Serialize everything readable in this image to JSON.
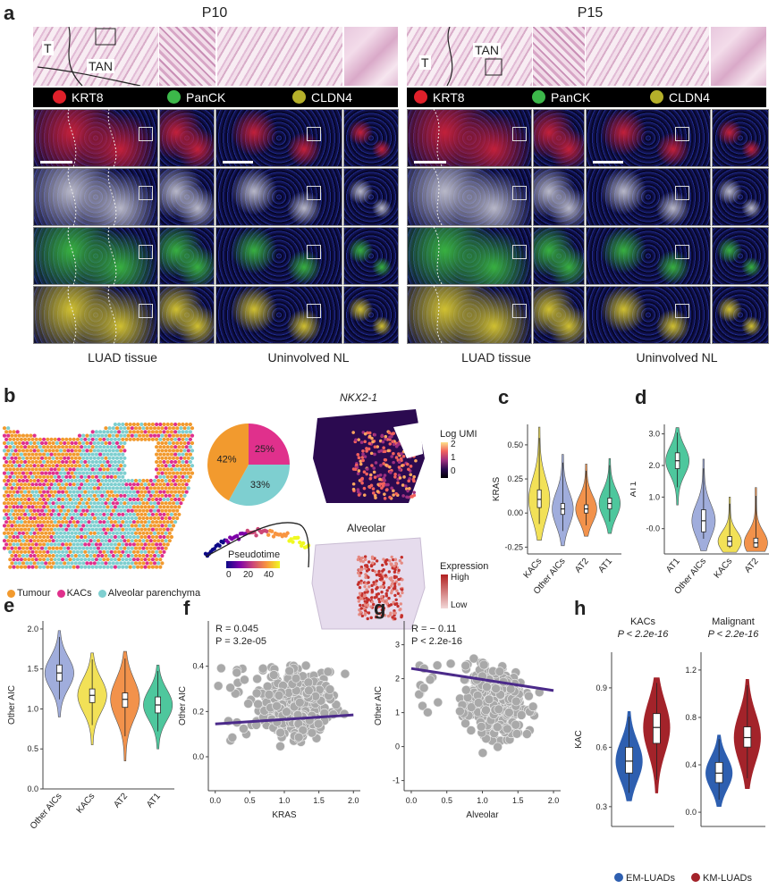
{
  "panels": {
    "a": "a",
    "b": "b",
    "c": "c",
    "d": "d",
    "e": "e",
    "f": "f",
    "g": "g",
    "h": "h"
  },
  "panel_a": {
    "left_title": "P10",
    "right_title": "P15",
    "he_label_T": "T",
    "he_label_TAN": "TAN",
    "legend": [
      {
        "label": "KRT8",
        "color": "#e0202a"
      },
      {
        "label": "PanCK",
        "color": "#3cb84a"
      },
      {
        "label": "CLDN4",
        "color": "#b5b02a"
      }
    ],
    "row_colors": [
      "#c2203a",
      "#b8b8c8",
      "#38b040",
      "#d0c030"
    ],
    "captions": [
      "LUAD tissue",
      "Uninvolved NL",
      "LUAD tissue",
      "Uninvolved NL"
    ]
  },
  "panel_b": {
    "pie": [
      {
        "label": "25%",
        "value": 25,
        "color": "#e0308c"
      },
      {
        "label": "33%",
        "value": 33,
        "color": "#7ecfd0"
      },
      {
        "label": "42%",
        "value": 42,
        "color": "#f29a2e"
      }
    ],
    "legend": [
      {
        "label": "Tumour",
        "color": "#f29a2e"
      },
      {
        "label": "KACs",
        "color": "#e0308c"
      },
      {
        "label": "Alveolar parenchyma",
        "color": "#7ecfd0"
      }
    ],
    "nkx_title": "NKX2-1",
    "log_umi_title": "Log UMI",
    "log_umi_ticks": [
      "2",
      "1",
      "0"
    ],
    "pseudotime_title": "Pseudotime",
    "pseudotime_ticks": [
      "0",
      "20",
      "40"
    ],
    "alveolar_title": "Alveolar",
    "expression_title": "Expression",
    "expression_high": "High",
    "expression_low": "Low"
  },
  "chart_data": [
    {
      "panel": "c",
      "type": "violin",
      "categories": [
        "KACs",
        "Other AICs",
        "AT2",
        "AT1"
      ],
      "colors": [
        "#f0dc3a",
        "#8f9fd6",
        "#f07f2c",
        "#2fbd8c"
      ],
      "ylabel": "KRAS",
      "ylim": [
        -0.3,
        0.65
      ],
      "yticks": [
        "-0.25",
        "0.00",
        "0.25",
        "0.50"
      ],
      "ytick_values": [
        -0.25,
        0.0,
        0.25,
        0.5
      ],
      "medians": [
        0.1,
        0.03,
        0.03,
        0.07
      ],
      "q1": [
        0.04,
        -0.01,
        0.0,
        0.03
      ],
      "q3": [
        0.17,
        0.07,
        0.06,
        0.11
      ],
      "min": [
        -0.2,
        -0.24,
        -0.17,
        -0.15
      ],
      "max": [
        0.63,
        0.43,
        0.36,
        0.4
      ]
    },
    {
      "panel": "d",
      "type": "violin",
      "categories": [
        "AT1",
        "Other AICs",
        "KACs",
        "AT2"
      ],
      "colors": [
        "#2fbd8c",
        "#8f9fd6",
        "#f0dc3a",
        "#f07f2c"
      ],
      "ylabel": "AT1",
      "ylim": [
        -0.8,
        3.3
      ],
      "yticks": [
        "-0.0",
        "1.0",
        "2.0",
        "3.0"
      ],
      "ytick_values": [
        0.0,
        1.0,
        2.0,
        3.0
      ],
      "medians": [
        2.15,
        0.25,
        -0.4,
        -0.45
      ],
      "q1": [
        1.9,
        -0.1,
        -0.55,
        -0.58
      ],
      "q3": [
        2.4,
        0.6,
        -0.25,
        -0.3
      ],
      "min": [
        0.75,
        -0.7,
        -0.75,
        -0.72
      ],
      "max": [
        3.2,
        2.2,
        1.0,
        1.3
      ]
    },
    {
      "panel": "e",
      "type": "violin",
      "categories": [
        "Other AICs",
        "KACs",
        "AT2",
        "AT1"
      ],
      "colors": [
        "#8f9fd6",
        "#f0dc3a",
        "#f07f2c",
        "#2fbd8c"
      ],
      "ylabel": "Other AIC",
      "ylim": [
        0.0,
        2.1
      ],
      "yticks": [
        "0.0",
        "0.5",
        "1.0",
        "1.5",
        "2.0"
      ],
      "ytick_values": [
        0.0,
        0.5,
        1.0,
        1.5,
        2.0
      ],
      "medians": [
        1.45,
        1.17,
        1.12,
        1.05
      ],
      "q1": [
        1.35,
        1.08,
        1.02,
        0.95
      ],
      "q3": [
        1.55,
        1.25,
        1.2,
        1.15
      ],
      "min": [
        0.9,
        0.55,
        0.35,
        0.5
      ],
      "max": [
        1.98,
        1.7,
        1.72,
        1.55
      ]
    },
    {
      "panel": "f",
      "type": "scatter",
      "xlabel": "KRAS",
      "ylabel": "Other AIC",
      "xlim": [
        -0.1,
        2.1
      ],
      "ylim": [
        -0.15,
        0.6
      ],
      "xticks": [
        "0.0",
        "0.5",
        "1.0",
        "1.5",
        "2.0"
      ],
      "xtick_values": [
        0.0,
        0.5,
        1.0,
        1.5,
        2.0
      ],
      "yticks": [
        "0.0",
        "0.2",
        "0.4"
      ],
      "ytick_values": [
        0.0,
        0.2,
        0.4
      ],
      "R": "R  = 0.045",
      "P": "P  = 3.2e-05",
      "fit": {
        "x": [
          0.0,
          2.0
        ],
        "y": [
          0.145,
          0.185
        ]
      }
    },
    {
      "panel": "g",
      "type": "scatter",
      "xlabel": "Alveolar",
      "ylabel": "Other AIC",
      "xlim": [
        -0.1,
        2.1
      ],
      "ylim": [
        -1.3,
        3.7
      ],
      "xticks": [
        "0.0",
        "0.5",
        "1.0",
        "1.5",
        "2.0"
      ],
      "xtick_values": [
        0.0,
        0.5,
        1.0,
        1.5,
        2.0
      ],
      "yticks": [
        "-1",
        "0",
        "1",
        "2",
        "3"
      ],
      "ytick_values": [
        -1,
        0,
        1,
        2,
        3
      ],
      "R": "R = − 0.11",
      "P": "P < 2.2e-16",
      "fit": {
        "x": [
          0.0,
          2.0
        ],
        "y": [
          2.3,
          1.65
        ]
      }
    },
    {
      "panel": "h",
      "type": "violin",
      "subplots": [
        {
          "title": "KACs",
          "pval": "P < 2.2e-16",
          "ylim": [
            0.2,
            1.08
          ],
          "yticks": [
            "0.3",
            "0.6",
            "0.9"
          ],
          "ytick_values": [
            0.3,
            0.6,
            0.9
          ],
          "medians": [
            0.53,
            0.7
          ],
          "q1": [
            0.47,
            0.62
          ],
          "q3": [
            0.6,
            0.77
          ],
          "min": [
            0.33,
            0.37
          ],
          "max": [
            0.78,
            0.95
          ]
        },
        {
          "title": "Malignant",
          "pval": "P < 2.2e-16",
          "ylim": [
            -0.12,
            1.35
          ],
          "yticks": [
            "0.0",
            "0.4",
            "0.8",
            "1.2"
          ],
          "ytick_values": [
            0.0,
            0.4,
            0.8,
            1.2
          ],
          "medians": [
            0.33,
            0.63
          ],
          "q1": [
            0.25,
            0.55
          ],
          "q3": [
            0.42,
            0.72
          ],
          "min": [
            0.05,
            0.2
          ],
          "max": [
            0.65,
            1.12
          ]
        }
      ],
      "ylabel": "KAC",
      "series": [
        {
          "name": "EM-LUADs",
          "color": "#2e5fb0"
        },
        {
          "name": "KM-LUADs",
          "color": "#a3232a"
        }
      ]
    }
  ]
}
